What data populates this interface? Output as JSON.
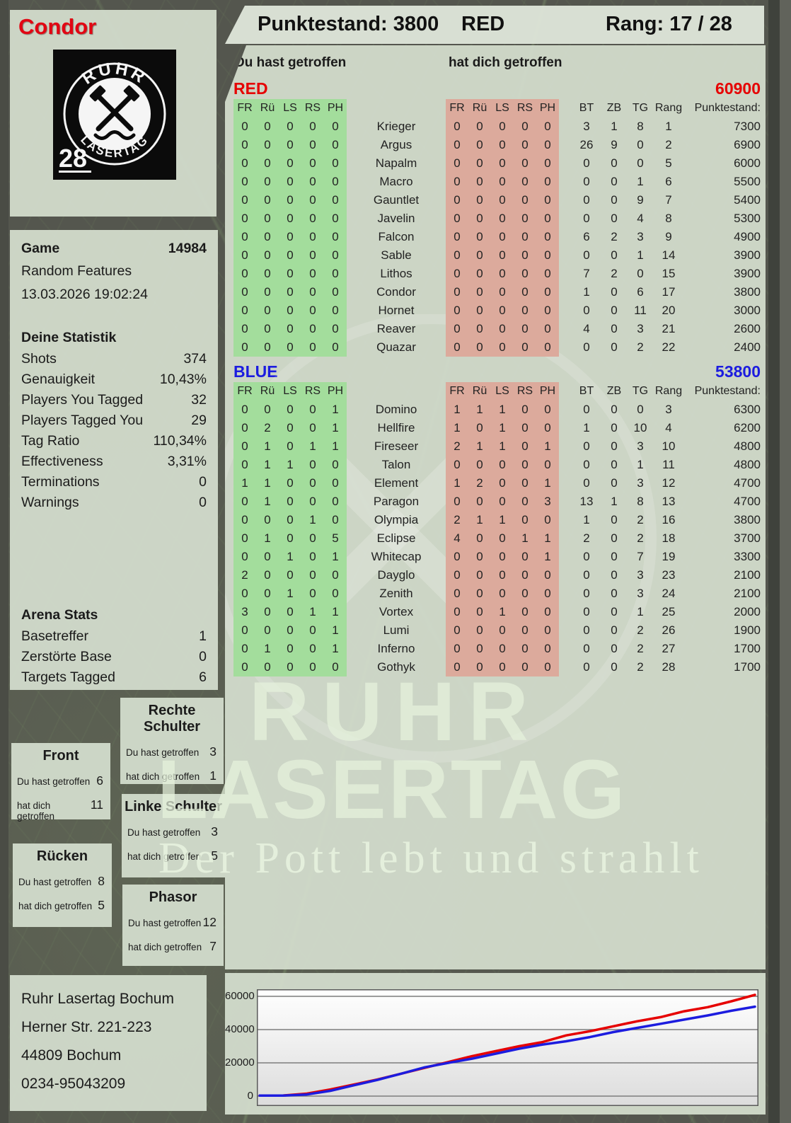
{
  "header": {
    "player": "Condor",
    "points": "Punktestand: 3800",
    "team": "RED",
    "rank": "Rang: 17 / 28"
  },
  "logo": {
    "top": "RUHR",
    "bottom": "LASERTAG",
    "number": "28"
  },
  "game": {
    "label": "Game",
    "id": "14984",
    "mode": "Random Features",
    "datetime": "13.03.2026 19:02:24"
  },
  "stats": {
    "title": "Deine Statistik",
    "rows": [
      {
        "label": "Shots",
        "value": "374"
      },
      {
        "label": "Genauigkeit",
        "value": "10,43%"
      },
      {
        "label": "Players You Tagged",
        "value": "32"
      },
      {
        "label": "Players Tagged You",
        "value": "29"
      },
      {
        "label": "Tag Ratio",
        "value": "110,34%"
      },
      {
        "label": "Effectiveness",
        "value": "3,31%"
      },
      {
        "label": "Terminations",
        "value": "0"
      },
      {
        "label": "Warnings",
        "value": "0"
      }
    ]
  },
  "arena": {
    "title": "Arena Stats",
    "rows": [
      {
        "label": "Basetreffer",
        "value": "1"
      },
      {
        "label": "Zerstörte Base",
        "value": "0"
      },
      {
        "label": "Targets Tagged",
        "value": "6"
      }
    ]
  },
  "columns": {
    "hit_you": "Du hast getroffen",
    "hit_by": "hat dich getroffen",
    "body": [
      "FR",
      "Rü",
      "LS",
      "RS",
      "PH"
    ],
    "right": [
      "BT",
      "ZB",
      "TG",
      "Rang",
      "Punktestand:"
    ]
  },
  "teams": [
    {
      "name": "RED",
      "score": "60900",
      "color": "#e60000",
      "players": [
        {
          "name": "Krieger",
          "you": [
            0,
            0,
            0,
            0,
            0
          ],
          "them": [
            0,
            0,
            0,
            0,
            0
          ],
          "bt": 3,
          "zb": 1,
          "tg": 8,
          "rang": 1,
          "points": 7300
        },
        {
          "name": "Argus",
          "you": [
            0,
            0,
            0,
            0,
            0
          ],
          "them": [
            0,
            0,
            0,
            0,
            0
          ],
          "bt": 26,
          "zb": 9,
          "tg": 0,
          "rang": 2,
          "points": 6900
        },
        {
          "name": "Napalm",
          "you": [
            0,
            0,
            0,
            0,
            0
          ],
          "them": [
            0,
            0,
            0,
            0,
            0
          ],
          "bt": 0,
          "zb": 0,
          "tg": 0,
          "rang": 5,
          "points": 6000
        },
        {
          "name": "Macro",
          "you": [
            0,
            0,
            0,
            0,
            0
          ],
          "them": [
            0,
            0,
            0,
            0,
            0
          ],
          "bt": 0,
          "zb": 0,
          "tg": 1,
          "rang": 6,
          "points": 5500
        },
        {
          "name": "Gauntlet",
          "you": [
            0,
            0,
            0,
            0,
            0
          ],
          "them": [
            0,
            0,
            0,
            0,
            0
          ],
          "bt": 0,
          "zb": 0,
          "tg": 9,
          "rang": 7,
          "points": 5400
        },
        {
          "name": "Javelin",
          "you": [
            0,
            0,
            0,
            0,
            0
          ],
          "them": [
            0,
            0,
            0,
            0,
            0
          ],
          "bt": 0,
          "zb": 0,
          "tg": 4,
          "rang": 8,
          "points": 5300
        },
        {
          "name": "Falcon",
          "you": [
            0,
            0,
            0,
            0,
            0
          ],
          "them": [
            0,
            0,
            0,
            0,
            0
          ],
          "bt": 6,
          "zb": 2,
          "tg": 3,
          "rang": 9,
          "points": 4900
        },
        {
          "name": "Sable",
          "you": [
            0,
            0,
            0,
            0,
            0
          ],
          "them": [
            0,
            0,
            0,
            0,
            0
          ],
          "bt": 0,
          "zb": 0,
          "tg": 1,
          "rang": 14,
          "points": 3900
        },
        {
          "name": "Lithos",
          "you": [
            0,
            0,
            0,
            0,
            0
          ],
          "them": [
            0,
            0,
            0,
            0,
            0
          ],
          "bt": 7,
          "zb": 2,
          "tg": 0,
          "rang": 15,
          "points": 3900
        },
        {
          "name": "Condor",
          "you": [
            0,
            0,
            0,
            0,
            0
          ],
          "them": [
            0,
            0,
            0,
            0,
            0
          ],
          "bt": 1,
          "zb": 0,
          "tg": 6,
          "rang": 17,
          "points": 3800
        },
        {
          "name": "Hornet",
          "you": [
            0,
            0,
            0,
            0,
            0
          ],
          "them": [
            0,
            0,
            0,
            0,
            0
          ],
          "bt": 0,
          "zb": 0,
          "tg": 11,
          "rang": 20,
          "points": 3000
        },
        {
          "name": "Reaver",
          "you": [
            0,
            0,
            0,
            0,
            0
          ],
          "them": [
            0,
            0,
            0,
            0,
            0
          ],
          "bt": 4,
          "zb": 0,
          "tg": 3,
          "rang": 21,
          "points": 2600
        },
        {
          "name": "Quazar",
          "you": [
            0,
            0,
            0,
            0,
            0
          ],
          "them": [
            0,
            0,
            0,
            0,
            0
          ],
          "bt": 0,
          "zb": 0,
          "tg": 2,
          "rang": 22,
          "points": 2400
        }
      ]
    },
    {
      "name": "BLUE",
      "score": "53800",
      "color": "#1c1cdf",
      "players": [
        {
          "name": "Domino",
          "you": [
            0,
            0,
            0,
            0,
            1
          ],
          "them": [
            1,
            1,
            1,
            0,
            0
          ],
          "bt": 0,
          "zb": 0,
          "tg": 0,
          "rang": 3,
          "points": 6300
        },
        {
          "name": "Hellfire",
          "you": [
            0,
            2,
            0,
            0,
            1
          ],
          "them": [
            1,
            0,
            1,
            0,
            0
          ],
          "bt": 1,
          "zb": 0,
          "tg": 10,
          "rang": 4,
          "points": 6200
        },
        {
          "name": "Fireseer",
          "you": [
            0,
            1,
            0,
            1,
            1
          ],
          "them": [
            2,
            1,
            1,
            0,
            1
          ],
          "bt": 0,
          "zb": 0,
          "tg": 3,
          "rang": 10,
          "points": 4800
        },
        {
          "name": "Talon",
          "you": [
            0,
            1,
            1,
            0,
            0
          ],
          "them": [
            0,
            0,
            0,
            0,
            0
          ],
          "bt": 0,
          "zb": 0,
          "tg": 1,
          "rang": 11,
          "points": 4800
        },
        {
          "name": "Element",
          "you": [
            1,
            1,
            0,
            0,
            0
          ],
          "them": [
            1,
            2,
            0,
            0,
            1
          ],
          "bt": 0,
          "zb": 0,
          "tg": 3,
          "rang": 12,
          "points": 4700
        },
        {
          "name": "Paragon",
          "you": [
            0,
            1,
            0,
            0,
            0
          ],
          "them": [
            0,
            0,
            0,
            0,
            3
          ],
          "bt": 13,
          "zb": 1,
          "tg": 8,
          "rang": 13,
          "points": 4700
        },
        {
          "name": "Olympia",
          "you": [
            0,
            0,
            0,
            1,
            0
          ],
          "them": [
            2,
            1,
            1,
            0,
            0
          ],
          "bt": 1,
          "zb": 0,
          "tg": 2,
          "rang": 16,
          "points": 3800
        },
        {
          "name": "Eclipse",
          "you": [
            0,
            1,
            0,
            0,
            5
          ],
          "them": [
            4,
            0,
            0,
            1,
            1
          ],
          "bt": 2,
          "zb": 0,
          "tg": 2,
          "rang": 18,
          "points": 3700
        },
        {
          "name": "Whitecap",
          "you": [
            0,
            0,
            1,
            0,
            1
          ],
          "them": [
            0,
            0,
            0,
            0,
            1
          ],
          "bt": 0,
          "zb": 0,
          "tg": 7,
          "rang": 19,
          "points": 3300
        },
        {
          "name": "Dayglo",
          "you": [
            2,
            0,
            0,
            0,
            0
          ],
          "them": [
            0,
            0,
            0,
            0,
            0
          ],
          "bt": 0,
          "zb": 0,
          "tg": 3,
          "rang": 23,
          "points": 2100
        },
        {
          "name": "Zenith",
          "you": [
            0,
            0,
            1,
            0,
            0
          ],
          "them": [
            0,
            0,
            0,
            0,
            0
          ],
          "bt": 0,
          "zb": 0,
          "tg": 3,
          "rang": 24,
          "points": 2100
        },
        {
          "name": "Vortex",
          "you": [
            3,
            0,
            0,
            1,
            1
          ],
          "them": [
            0,
            0,
            1,
            0,
            0
          ],
          "bt": 0,
          "zb": 0,
          "tg": 1,
          "rang": 25,
          "points": 2000
        },
        {
          "name": "Lumi",
          "you": [
            0,
            0,
            0,
            0,
            1
          ],
          "them": [
            0,
            0,
            0,
            0,
            0
          ],
          "bt": 0,
          "zb": 0,
          "tg": 2,
          "rang": 26,
          "points": 1900
        },
        {
          "name": "Inferno",
          "you": [
            0,
            1,
            0,
            0,
            1
          ],
          "them": [
            0,
            0,
            0,
            0,
            0
          ],
          "bt": 0,
          "zb": 0,
          "tg": 2,
          "rang": 27,
          "points": 1700
        },
        {
          "name": "Gothyk",
          "you": [
            0,
            0,
            0,
            0,
            0
          ],
          "them": [
            0,
            0,
            0,
            0,
            0
          ],
          "bt": 0,
          "zb": 0,
          "tg": 2,
          "rang": 28,
          "points": 1700
        }
      ]
    }
  ],
  "bodyparts": {
    "you_label": "Du hast getroffen",
    "them_label": "hat dich getroffen",
    "rechte": {
      "title": "Rechte Schulter",
      "you": "3",
      "them": "1"
    },
    "front": {
      "title": "Front",
      "you": "6",
      "them": "11"
    },
    "linke": {
      "title": "Linke Schulter",
      "you": "3",
      "them": "5"
    },
    "ruecken": {
      "title": "Rücken",
      "you": "8",
      "them": "5"
    },
    "phasor": {
      "title": "Phasor",
      "you": "12",
      "them": "7"
    }
  },
  "watermark": {
    "line1": "RUHR",
    "line2": "LASERTAG",
    "tagline": "Der Pott lebt und strahlt"
  },
  "address": {
    "lines": [
      "Ruhr Lasertag Bochum",
      "Herner Str. 221-223",
      "44809 Bochum",
      "0234-95043209"
    ]
  },
  "chart_data": {
    "type": "line",
    "title": "",
    "xlabel": "",
    "ylabel": "",
    "grid": true,
    "legend": "none",
    "ylim": [
      0,
      65000
    ],
    "yticks": [
      0,
      20000,
      40000,
      60000
    ],
    "ytick_labels": [
      "0",
      "20000",
      "40000",
      "60000"
    ],
    "x": [
      0,
      1,
      2,
      3,
      4,
      5,
      6,
      7,
      8,
      9,
      10,
      11,
      12,
      13,
      14,
      15,
      16,
      17,
      18,
      19,
      20,
      21
    ],
    "series": [
      {
        "name": "RED",
        "color": "#e60000",
        "values": [
          300,
          400,
          1500,
          4000,
          7000,
          10000,
          13500,
          17000,
          20500,
          24000,
          27000,
          30000,
          32500,
          36500,
          39000,
          42000,
          45000,
          47500,
          51000,
          53500,
          57000,
          60900
        ]
      },
      {
        "name": "BLUE",
        "color": "#1c1cdf",
        "values": [
          300,
          300,
          1000,
          3200,
          6500,
          9800,
          13500,
          17300,
          20000,
          22500,
          25500,
          28500,
          31000,
          33000,
          35500,
          38500,
          41000,
          43500,
          46000,
          48500,
          51300,
          53800
        ]
      }
    ]
  }
}
